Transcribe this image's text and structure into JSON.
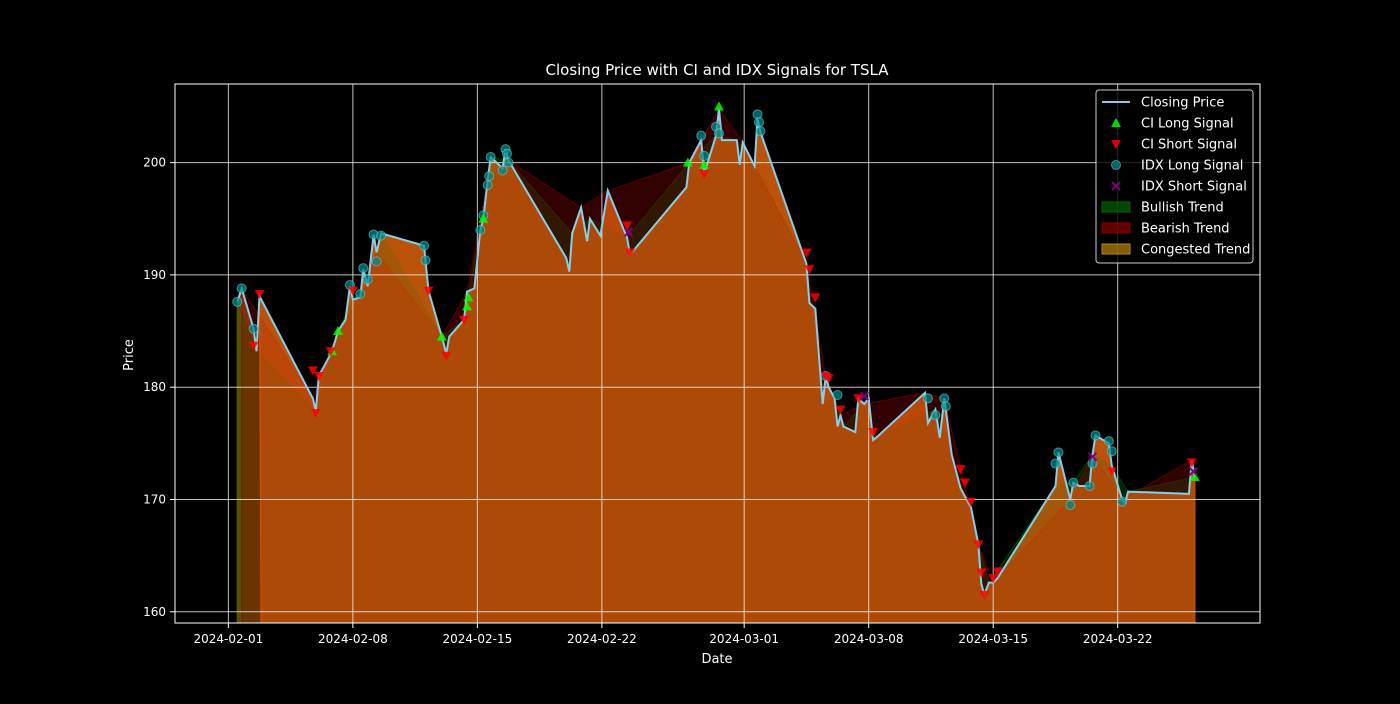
{
  "chart_data": {
    "type": "line",
    "title": "Closing Price with CI and IDX Signals for TSLA",
    "xlabel": "Date",
    "ylabel": "Price",
    "xlim": [
      "2024-01-29",
      "2024-03-30"
    ],
    "ylim": [
      159,
      207
    ],
    "x_ticks": [
      "2024-02-01",
      "2024-02-08",
      "2024-02-15",
      "2024-02-22",
      "2024-03-01",
      "2024-03-08",
      "2024-03-15",
      "2024-03-22"
    ],
    "y_ticks": [
      160,
      170,
      180,
      190,
      200
    ],
    "grid": true,
    "legend_position": "top-right",
    "colors": {
      "background": "#000000",
      "line": "#87ceeb",
      "ci_long": "#00ff00",
      "ci_short": "#ff0000",
      "idx_long": "#008b8b",
      "idx_short": "#800080",
      "bullish": "#006400",
      "bearish": "#8b0000",
      "congested": "#b8860b",
      "grid": "#ffffff"
    },
    "legend": [
      {
        "key": "line",
        "label": "Closing Price"
      },
      {
        "key": "ci_long",
        "label": "CI Long Signal"
      },
      {
        "key": "ci_short",
        "label": "CI Short Signal"
      },
      {
        "key": "idx_long",
        "label": "IDX Long Signal"
      },
      {
        "key": "idx_short",
        "label": "IDX Short Signal"
      },
      {
        "key": "bullish",
        "label": "Bullish Trend"
      },
      {
        "key": "bearish",
        "label": "Bearish Trend"
      },
      {
        "key": "congested",
        "label": "Congested Trend"
      }
    ],
    "series": [
      {
        "name": "Closing Price",
        "points": [
          [
            "2024-02-01T12:00",
            187.6
          ],
          [
            "2024-02-01T18:00",
            188.8
          ],
          [
            "2024-02-02T10:00",
            185.2
          ],
          [
            "2024-02-02T14:00",
            183.2
          ],
          [
            "2024-02-02T18:00",
            188.1
          ],
          [
            "2024-02-05T18:00",
            179.0
          ],
          [
            "2024-02-05T22:00",
            177.9
          ],
          [
            "2024-02-06T02:00",
            181.0
          ],
          [
            "2024-02-06T20:00",
            183.2
          ],
          [
            "2024-02-07T04:00",
            185.0
          ],
          [
            "2024-02-07T14:00",
            186.0
          ],
          [
            "2024-02-07T20:00",
            189.0
          ],
          [
            "2024-02-08T00:00",
            187.8
          ],
          [
            "2024-02-08T10:00",
            188.0
          ],
          [
            "2024-02-08T14:00",
            190.5
          ],
          [
            "2024-02-08T20:00",
            189.0
          ],
          [
            "2024-02-09T04:00",
            193.6
          ],
          [
            "2024-02-09T08:00",
            192.0
          ],
          [
            "2024-02-09T14:00",
            193.7
          ],
          [
            "2024-02-12T00:00",
            192.6
          ],
          [
            "2024-02-12T06:00",
            188.6
          ],
          [
            "2024-02-13T00:00",
            184.5
          ],
          [
            "2024-02-13T06:00",
            183.0
          ],
          [
            "2024-02-13T10:00",
            184.5
          ],
          [
            "2024-02-14T06:00",
            186.0
          ],
          [
            "2024-02-14T10:00",
            188.5
          ],
          [
            "2024-02-14T20:00",
            188.8
          ],
          [
            "2024-02-15T04:00",
            194.0
          ],
          [
            "2024-02-15T08:00",
            195.0
          ],
          [
            "2024-02-15T14:00",
            198.5
          ],
          [
            "2024-02-15T18:00",
            200.5
          ],
          [
            "2024-02-16T10:00",
            199.5
          ],
          [
            "2024-02-16T14:00",
            201.2
          ],
          [
            "2024-02-16T18:00",
            200.2
          ],
          [
            "2024-02-20T00:00",
            191.5
          ],
          [
            "2024-02-20T04:00",
            190.3
          ],
          [
            "2024-02-20T08:00",
            193.7
          ],
          [
            "2024-02-20T20:00",
            196.0
          ],
          [
            "2024-02-21T04:00",
            193.0
          ],
          [
            "2024-02-21T08:00",
            195.0
          ],
          [
            "2024-02-21T22:00",
            193.5
          ],
          [
            "2024-02-22T08:00",
            197.5
          ],
          [
            "2024-02-23T10:00",
            193.3
          ],
          [
            "2024-02-23T14:00",
            191.8
          ],
          [
            "2024-02-26T18:00",
            197.8
          ],
          [
            "2024-02-26T22:00",
            200.0
          ],
          [
            "2024-02-27T14:00",
            202.0
          ],
          [
            "2024-02-27T18:00",
            199.0
          ],
          [
            "2024-02-28T10:00",
            202.4
          ],
          [
            "2024-02-28T14:00",
            204.8
          ],
          [
            "2024-02-28T18:00",
            202.0
          ],
          [
            "2024-02-29T14:00",
            202.0
          ],
          [
            "2024-02-29T18:00",
            199.8
          ],
          [
            "2024-02-29T22:00",
            201.8
          ],
          [
            "2024-03-01T14:00",
            199.7
          ],
          [
            "2024-03-01T18:00",
            204.0
          ],
          [
            "2024-03-01T22:00",
            202.7
          ],
          [
            "2024-03-04T12:00",
            191.0
          ],
          [
            "2024-03-04T16:00",
            187.5
          ],
          [
            "2024-03-05T00:00",
            187.0
          ],
          [
            "2024-03-05T10:00",
            178.5
          ],
          [
            "2024-03-05T14:00",
            181.0
          ],
          [
            "2024-03-05T18:00",
            180.0
          ],
          [
            "2024-03-06T02:00",
            179.0
          ],
          [
            "2024-03-06T06:00",
            176.5
          ],
          [
            "2024-03-06T10:00",
            177.5
          ],
          [
            "2024-03-06T14:00",
            176.5
          ],
          [
            "2024-03-07T06:00",
            176.0
          ],
          [
            "2024-03-07T10:00",
            179.0
          ],
          [
            "2024-03-07T18:00",
            178.5
          ],
          [
            "2024-03-08T00:00",
            179.0
          ],
          [
            "2024-03-08T06:00",
            175.3
          ],
          [
            "2024-03-08T10:00",
            175.5
          ],
          [
            "2024-03-11T04:00",
            179.5
          ],
          [
            "2024-03-11T08:00",
            176.8
          ],
          [
            "2024-03-11T18:00",
            178.0
          ],
          [
            "2024-03-12T00:00",
            175.5
          ],
          [
            "2024-03-12T06:00",
            179.0
          ],
          [
            "2024-03-12T16:00",
            174.0
          ],
          [
            "2024-03-13T04:00",
            171.0
          ],
          [
            "2024-03-13T18:00",
            169.3
          ],
          [
            "2024-03-14T04:00",
            166.0
          ],
          [
            "2024-03-14T08:00",
            162.5
          ],
          [
            "2024-03-14T12:00",
            161.5
          ],
          [
            "2024-03-14T18:00",
            162.6
          ],
          [
            "2024-03-15T00:00",
            162.6
          ],
          [
            "2024-03-15T06:00",
            163.0
          ],
          [
            "2024-03-18T12:00",
            171.2
          ],
          [
            "2024-03-18T16:00",
            174.2
          ],
          [
            "2024-03-19T08:00",
            170.0
          ],
          [
            "2024-03-19T12:00",
            171.5
          ],
          [
            "2024-03-19T20:00",
            171.2
          ],
          [
            "2024-03-20T10:00",
            171.2
          ],
          [
            "2024-03-20T14:00",
            174.0
          ],
          [
            "2024-03-20T18:00",
            175.7
          ],
          [
            "2024-03-21T12:00",
            175.0
          ],
          [
            "2024-03-21T16:00",
            173.0
          ],
          [
            "2024-03-22T06:00",
            170.0
          ],
          [
            "2024-03-22T10:00",
            169.7
          ],
          [
            "2024-03-22T14:00",
            170.7
          ],
          [
            "2024-03-26T00:00",
            170.5
          ],
          [
            "2024-03-26T04:00",
            173.5
          ],
          [
            "2024-03-26T08:00",
            172.0
          ]
        ]
      },
      {
        "name": "CI Long Signal",
        "points": [
          [
            "2024-02-06T20:00",
            183.2
          ],
          [
            "2024-02-07T04:00",
            185.0
          ],
          [
            "2024-02-13T00:00",
            184.5
          ],
          [
            "2024-02-14T10:00",
            187.2
          ],
          [
            "2024-02-14T12:00",
            188.0
          ],
          [
            "2024-02-15T08:00",
            195.0
          ],
          [
            "2024-02-26T20:00",
            200.0
          ],
          [
            "2024-02-27T18:00",
            199.8
          ],
          [
            "2024-02-28T14:00",
            205.0
          ],
          [
            "2024-03-26T08:00",
            172.0
          ]
        ]
      },
      {
        "name": "CI Short Signal",
        "points": [
          [
            "2024-02-02T10:00",
            183.7
          ],
          [
            "2024-02-02T18:00",
            188.3
          ],
          [
            "2024-02-05T18:00",
            181.5
          ],
          [
            "2024-02-05T22:00",
            177.7
          ],
          [
            "2024-02-06T02:00",
            181.0
          ],
          [
            "2024-02-06T18:00",
            183.2
          ],
          [
            "2024-02-08T00:00",
            188.6
          ],
          [
            "2024-02-12T06:00",
            188.6
          ],
          [
            "2024-02-13T06:00",
            182.8
          ],
          [
            "2024-02-14T06:00",
            186.0
          ],
          [
            "2024-02-23T10:00",
            194.4
          ],
          [
            "2024-02-23T14:00",
            192.0
          ],
          [
            "2024-02-27T18:00",
            199.0
          ],
          [
            "2024-03-04T12:00",
            192.0
          ],
          [
            "2024-03-04T16:00",
            190.5
          ],
          [
            "2024-03-05T00:00",
            188.0
          ],
          [
            "2024-03-05T14:00",
            181.0
          ],
          [
            "2024-03-05T18:00",
            180.8
          ],
          [
            "2024-03-06T10:00",
            178.0
          ],
          [
            "2024-03-07T10:00",
            179.0
          ],
          [
            "2024-03-08T06:00",
            176.0
          ],
          [
            "2024-03-13T04:00",
            172.7
          ],
          [
            "2024-03-13T10:00",
            171.5
          ],
          [
            "2024-03-13T18:00",
            169.8
          ],
          [
            "2024-03-14T04:00",
            166.0
          ],
          [
            "2024-03-14T08:00",
            163.5
          ],
          [
            "2024-03-14T12:00",
            161.5
          ],
          [
            "2024-03-15T00:00",
            163.0
          ],
          [
            "2024-03-15T06:00",
            163.6
          ],
          [
            "2024-03-21T16:00",
            172.5
          ],
          [
            "2024-03-26T04:00",
            173.3
          ]
        ]
      },
      {
        "name": "IDX Long Signal",
        "points": [
          [
            "2024-02-01T12:00",
            187.6
          ],
          [
            "2024-02-01T18:00",
            188.8
          ],
          [
            "2024-02-02T10:00",
            185.2
          ],
          [
            "2024-02-07T20:00",
            189.1
          ],
          [
            "2024-02-08T10:00",
            188.3
          ],
          [
            "2024-02-08T14:00",
            190.6
          ],
          [
            "2024-02-08T20:00",
            189.6
          ],
          [
            "2024-02-09T04:00",
            193.6
          ],
          [
            "2024-02-09T08:00",
            191.2
          ],
          [
            "2024-02-09T14:00",
            193.5
          ],
          [
            "2024-02-12T00:00",
            192.6
          ],
          [
            "2024-02-12T02:00",
            191.3
          ],
          [
            "2024-02-15T04:00",
            194.0
          ],
          [
            "2024-02-15T08:00",
            195.3
          ],
          [
            "2024-02-15T14:00",
            198.0
          ],
          [
            "2024-02-15T16:00",
            198.8
          ],
          [
            "2024-02-15T18:00",
            200.5
          ],
          [
            "2024-02-16T10:00",
            199.3
          ],
          [
            "2024-02-16T14:00",
            201.2
          ],
          [
            "2024-02-16T16:00",
            200.8
          ],
          [
            "2024-02-16T18:00",
            200.0
          ],
          [
            "2024-02-27T14:00",
            202.4
          ],
          [
            "2024-02-27T18:00",
            200.6
          ],
          [
            "2024-02-28T10:00",
            203.2
          ],
          [
            "2024-02-28T14:00",
            202.6
          ],
          [
            "2024-03-01T18:00",
            204.3
          ],
          [
            "2024-03-01T20:00",
            203.6
          ],
          [
            "2024-03-01T22:00",
            202.8
          ],
          [
            "2024-03-05T14:00",
            181.0
          ],
          [
            "2024-03-06T06:00",
            179.3
          ],
          [
            "2024-03-11T08:00",
            179.0
          ],
          [
            "2024-03-11T18:00",
            177.5
          ],
          [
            "2024-03-12T06:00",
            179.0
          ],
          [
            "2024-03-12T08:00",
            178.3
          ],
          [
            "2024-03-18T12:00",
            173.2
          ],
          [
            "2024-03-18T16:00",
            174.2
          ],
          [
            "2024-03-19T08:00",
            169.5
          ],
          [
            "2024-03-19T12:00",
            171.5
          ],
          [
            "2024-03-20T10:00",
            171.2
          ],
          [
            "2024-03-20T14:00",
            173.2
          ],
          [
            "2024-03-20T18:00",
            175.7
          ],
          [
            "2024-03-21T12:00",
            175.2
          ],
          [
            "2024-03-21T16:00",
            174.3
          ],
          [
            "2024-03-22T06:00",
            169.8
          ]
        ]
      },
      {
        "name": "IDX Short Signal",
        "points": [
          [
            "2024-02-23T12:00",
            193.8
          ],
          [
            "2024-03-07T18:00",
            179.2
          ],
          [
            "2024-03-20T14:00",
            173.8
          ],
          [
            "2024-03-26T06:00",
            172.5
          ]
        ]
      }
    ]
  }
}
